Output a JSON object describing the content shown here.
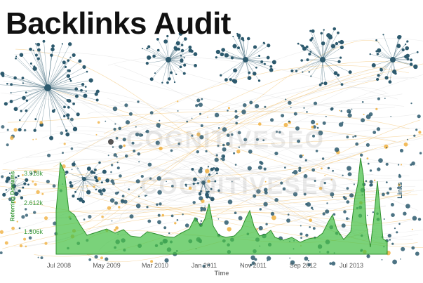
{
  "title": "Backlinks Audit",
  "watermark": "COGNITIVESEO",
  "chart": {
    "y_label": "Referring Domains",
    "y_ticks": [
      "3.918k",
      "2.612k",
      "1.306k"
    ],
    "links_label": "Links",
    "x_ticks": [
      "Jul 2008",
      "May 2009",
      "Mar 2010",
      "Jan 2011",
      "Nov 2011",
      "Sep 2012",
      "Jul 2013"
    ],
    "x_label": "Time"
  },
  "colors": {
    "node": "#2d5a6e",
    "orange": "#f0b040",
    "area_fill": "#46c046",
    "area_stroke": "#2f8f2f",
    "edge": "#c8c8c8"
  }
}
